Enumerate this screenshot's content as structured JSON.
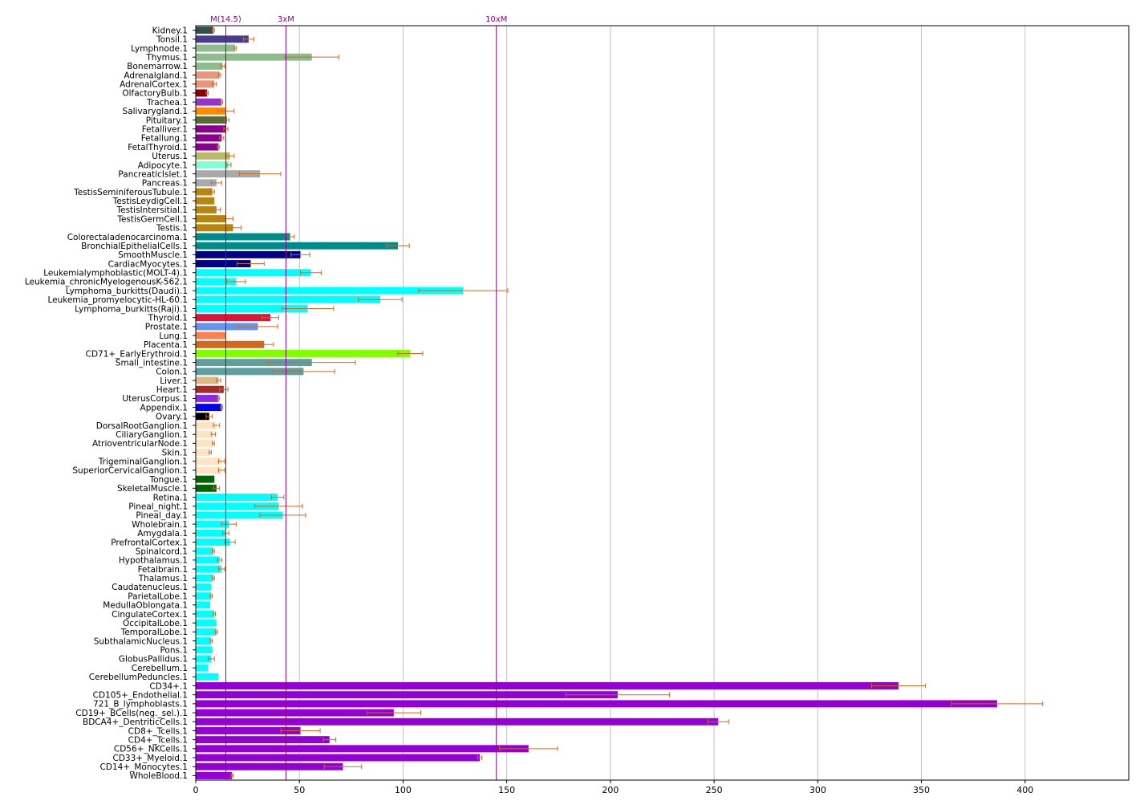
{
  "chart_data": {
    "type": "bar",
    "orientation": "horizontal",
    "title": "",
    "xlabel": "",
    "ylabel": "",
    "xlim": [
      0,
      450
    ],
    "xticks": [
      0,
      50,
      100,
      150,
      200,
      250,
      300,
      350,
      400
    ],
    "grid": "vertical",
    "error_bar_color": "#d2691e",
    "reference_lines": [
      {
        "label": "M(14.5)",
        "value": 14.5,
        "color": "#8b008b"
      },
      {
        "label": "3xM",
        "value": 43.5,
        "color": "#8b008b"
      },
      {
        "label": "10xM",
        "value": 145,
        "color": "#8b008b"
      }
    ],
    "bars": [
      {
        "category": "Kidney.1",
        "value": 8.5,
        "error": 0.5,
        "color": "#2f4f4f"
      },
      {
        "category": "Tonsil.1",
        "value": 25.5,
        "error": 2.5,
        "color": "#483d8b"
      },
      {
        "category": "Lymphnode.1",
        "value": 19,
        "error": 0.5,
        "color": "#8fbc8f"
      },
      {
        "category": "Thymus.1",
        "value": 56,
        "error": 13,
        "color": "#8fbc8f"
      },
      {
        "category": "Bonemarrow.1",
        "value": 13,
        "error": 1,
        "color": "#8fbc8f"
      },
      {
        "category": "Adrenalgland.1",
        "value": 11.5,
        "error": 0.5,
        "color": "#e9967a"
      },
      {
        "category": "AdrenalCortex.1",
        "value": 9,
        "error": 1,
        "color": "#e9967a"
      },
      {
        "category": "OlfactoryBulb.1",
        "value": 5.5,
        "error": 0.5,
        "color": "#8b0000"
      },
      {
        "category": "Trachea.1",
        "value": 12.5,
        "error": 0.5,
        "color": "#9932cc"
      },
      {
        "category": "Salivarygland.1",
        "value": 14.5,
        "error": 4,
        "color": "#ff8c00"
      },
      {
        "category": "Pituitary.1",
        "value": 15,
        "error": 1,
        "color": "#556b2f"
      },
      {
        "category": "Fetalliver.1",
        "value": 14.5,
        "error": 1,
        "color": "#8b008b"
      },
      {
        "category": "Fetallung.1",
        "value": 12.5,
        "error": 1,
        "color": "#8b008b"
      },
      {
        "category": "FetalThyroid.1",
        "value": 11,
        "error": 0.5,
        "color": "#8b008b"
      },
      {
        "category": "Uterus.1",
        "value": 16.5,
        "error": 2,
        "color": "#bdb76b"
      },
      {
        "category": "Adipocyte.1",
        "value": 16,
        "error": 1,
        "color": "#7fffd4"
      },
      {
        "category": "PancreaticIslet.1",
        "value": 31,
        "error": 10,
        "color": "#a9a9a9"
      },
      {
        "category": "Pancreas.1",
        "value": 10,
        "error": 2.5,
        "color": "#a9a9a9"
      },
      {
        "category": "TestisSeminiferousTubule.1",
        "value": 8,
        "error": 1,
        "color": "#b8860b"
      },
      {
        "category": "TestisLeydigCell.1",
        "value": 9,
        "error": 0,
        "color": "#b8860b"
      },
      {
        "category": "TestisIntersitial.1",
        "value": 10,
        "error": 2,
        "color": "#b8860b"
      },
      {
        "category": "TestisGermCell.1",
        "value": 14.5,
        "error": 3.5,
        "color": "#b8860b"
      },
      {
        "category": "Testis.1",
        "value": 18,
        "error": 4,
        "color": "#b8860b"
      },
      {
        "category": "Colorectaladenocarcinoma.1",
        "value": 45.5,
        "error": 2,
        "color": "#008b8b"
      },
      {
        "category": "BronchialEpithelialCells.1",
        "value": 97.5,
        "error": 5.5,
        "color": "#008b8b"
      },
      {
        "category": "SmoothMuscle.1",
        "value": 50.5,
        "error": 4.5,
        "color": "#00008b"
      },
      {
        "category": "CardiacMyocytes.1",
        "value": 26.5,
        "error": 6.5,
        "color": "#00008b"
      },
      {
        "category": "Leukemialymphoblastic(MOLT-4).1",
        "value": 55.5,
        "error": 5,
        "color": "#00ffff"
      },
      {
        "category": "Leukemia_chronicMyelogenousK-562.1",
        "value": 19.5,
        "error": 4.5,
        "color": "#00ffff"
      },
      {
        "category": "Lymphoma_burkitts(Daudi).1",
        "value": 129,
        "error": 21.5,
        "color": "#00ffff"
      },
      {
        "category": "Leukemia_promyelocytic-HL-60.1",
        "value": 89,
        "error": 10.5,
        "color": "#00ffff"
      },
      {
        "category": "Lymphoma_burkitts(Raji).1",
        "value": 54,
        "error": 12.5,
        "color": "#00ffff"
      },
      {
        "category": "Thyroid.1",
        "value": 36,
        "error": 4,
        "color": "#dc143c"
      },
      {
        "category": "Prostate.1",
        "value": 30,
        "error": 9.5,
        "color": "#6495ed"
      },
      {
        "category": "Lung.1",
        "value": 14.5,
        "error": 0,
        "color": "#ff7f50"
      },
      {
        "category": "Placenta.1",
        "value": 33,
        "error": 4.5,
        "color": "#d2691e"
      },
      {
        "category": "CD71+_EarlyErythroid.1",
        "value": 103.5,
        "error": 6,
        "color": "#7fff00"
      },
      {
        "category": "Small_intestine.1",
        "value": 56,
        "error": 21,
        "color": "#5f9ea0"
      },
      {
        "category": "Colon.1",
        "value": 52,
        "error": 15,
        "color": "#5f9ea0"
      },
      {
        "category": "Liver.1",
        "value": 11,
        "error": 1,
        "color": "#deb887"
      },
      {
        "category": "Heart.1",
        "value": 13.5,
        "error": 2,
        "color": "#a52a2a"
      },
      {
        "category": "UterusCorpus.1",
        "value": 11,
        "error": 0.5,
        "color": "#8a2be2"
      },
      {
        "category": "Appendix.1",
        "value": 12.5,
        "error": 0.5,
        "color": "#0000ff"
      },
      {
        "category": "Ovary.1",
        "value": 6.5,
        "error": 1.5,
        "color": "#000000"
      },
      {
        "category": "DorsalRootGanglion.1",
        "value": 10,
        "error": 1.5,
        "color": "#ffe4c4"
      },
      {
        "category": "CiliaryGanglion.1",
        "value": 8.5,
        "error": 1,
        "color": "#ffe4c4"
      },
      {
        "category": "AtrioventricularNode.1",
        "value": 8.5,
        "error": 0.5,
        "color": "#ffe4c4"
      },
      {
        "category": "Skin.1",
        "value": 7,
        "error": 0.5,
        "color": "#ffe4c4"
      },
      {
        "category": "TrigeminalGanglion.1",
        "value": 12.5,
        "error": 1.5,
        "color": "#ffe4c4"
      },
      {
        "category": "SuperiorCervicalGanglion.1",
        "value": 12.5,
        "error": 1.5,
        "color": "#ffe4c4"
      },
      {
        "category": "Tongue.1",
        "value": 9,
        "error": 0,
        "color": "#006400"
      },
      {
        "category": "SkeletalMuscle.1",
        "value": 10,
        "error": 1.5,
        "color": "#006400"
      },
      {
        "category": "Retina.1",
        "value": 39.5,
        "error": 3,
        "color": "#00ffff"
      },
      {
        "category": "Pineal_night.1",
        "value": 40,
        "error": 11.5,
        "color": "#00ffff"
      },
      {
        "category": "Pineal_day.1",
        "value": 42,
        "error": 11,
        "color": "#00ffff"
      },
      {
        "category": "Wholebrain.1",
        "value": 16,
        "error": 3.5,
        "color": "#00ffff"
      },
      {
        "category": "Amygdala.1",
        "value": 14.5,
        "error": 1.5,
        "color": "#00ffff"
      },
      {
        "category": "PrefrontalCortex.1",
        "value": 16.5,
        "error": 2.5,
        "color": "#00ffff"
      },
      {
        "category": "Spinalcord.1",
        "value": 8.5,
        "error": 0.5,
        "color": "#00ffff"
      },
      {
        "category": "Hypothalamus.1",
        "value": 11.5,
        "error": 1,
        "color": "#00ffff"
      },
      {
        "category": "Fetalbrain.1",
        "value": 12.5,
        "error": 1.5,
        "color": "#00ffff"
      },
      {
        "category": "Thalamus.1",
        "value": 8.5,
        "error": 0.5,
        "color": "#00ffff"
      },
      {
        "category": "Caudatenucleus.1",
        "value": 7.5,
        "error": 0,
        "color": "#00ffff"
      },
      {
        "category": "ParietalLobe.1",
        "value": 7.5,
        "error": 0.5,
        "color": "#00ffff"
      },
      {
        "category": "MedullaOblongata.1",
        "value": 7,
        "error": 0,
        "color": "#00ffff"
      },
      {
        "category": "CingulateCortex.1",
        "value": 9,
        "error": 0.5,
        "color": "#00ffff"
      },
      {
        "category": "OccipitalLobe.1",
        "value": 10,
        "error": 0,
        "color": "#00ffff"
      },
      {
        "category": "TemporalLobe.1",
        "value": 10,
        "error": 0.5,
        "color": "#00ffff"
      },
      {
        "category": "SubthalamicNucleus.1",
        "value": 7.5,
        "error": 0.5,
        "color": "#00ffff"
      },
      {
        "category": "Pons.1",
        "value": 8,
        "error": 0,
        "color": "#00ffff"
      },
      {
        "category": "GlobusPallidus.1",
        "value": 7.5,
        "error": 1.5,
        "color": "#00ffff"
      },
      {
        "category": "Cerebellum.1",
        "value": 6,
        "error": 0,
        "color": "#00ffff"
      },
      {
        "category": "CerebellumPeduncles.1",
        "value": 11,
        "error": 0,
        "color": "#00ffff"
      },
      {
        "category": "CD34+.1",
        "value": 339,
        "error": 13,
        "color": "#9400d3"
      },
      {
        "category": "CD105+_Endothelial.1",
        "value": 203.5,
        "error": 25,
        "color": "#9400d3"
      },
      {
        "category": "721_B_lymphoblasts.1",
        "value": 386.5,
        "error": 22,
        "color": "#9400d3"
      },
      {
        "category": "CD19+_BCells(neg._sel.).1",
        "value": 95.5,
        "error": 13,
        "color": "#9400d3"
      },
      {
        "category": "BDCA4+_DentriticCells.1",
        "value": 252,
        "error": 5,
        "color": "#9400d3"
      },
      {
        "category": "CD8+_Tcells.1",
        "value": 50.5,
        "error": 9.5,
        "color": "#9400d3"
      },
      {
        "category": "CD4+_Tcells.1",
        "value": 64.5,
        "error": 3,
        "color": "#9400d3"
      },
      {
        "category": "CD56+_NKCells.1",
        "value": 160.5,
        "error": 14,
        "color": "#9400d3"
      },
      {
        "category": "CD33+_Myeloid.1",
        "value": 137,
        "error": 1,
        "color": "#9400d3"
      },
      {
        "category": "CD14+_Monocytes.1",
        "value": 71,
        "error": 9,
        "color": "#9400d3"
      },
      {
        "category": "WholeBlood.1",
        "value": 17.5,
        "error": 0.5,
        "color": "#9400d3"
      }
    ]
  }
}
